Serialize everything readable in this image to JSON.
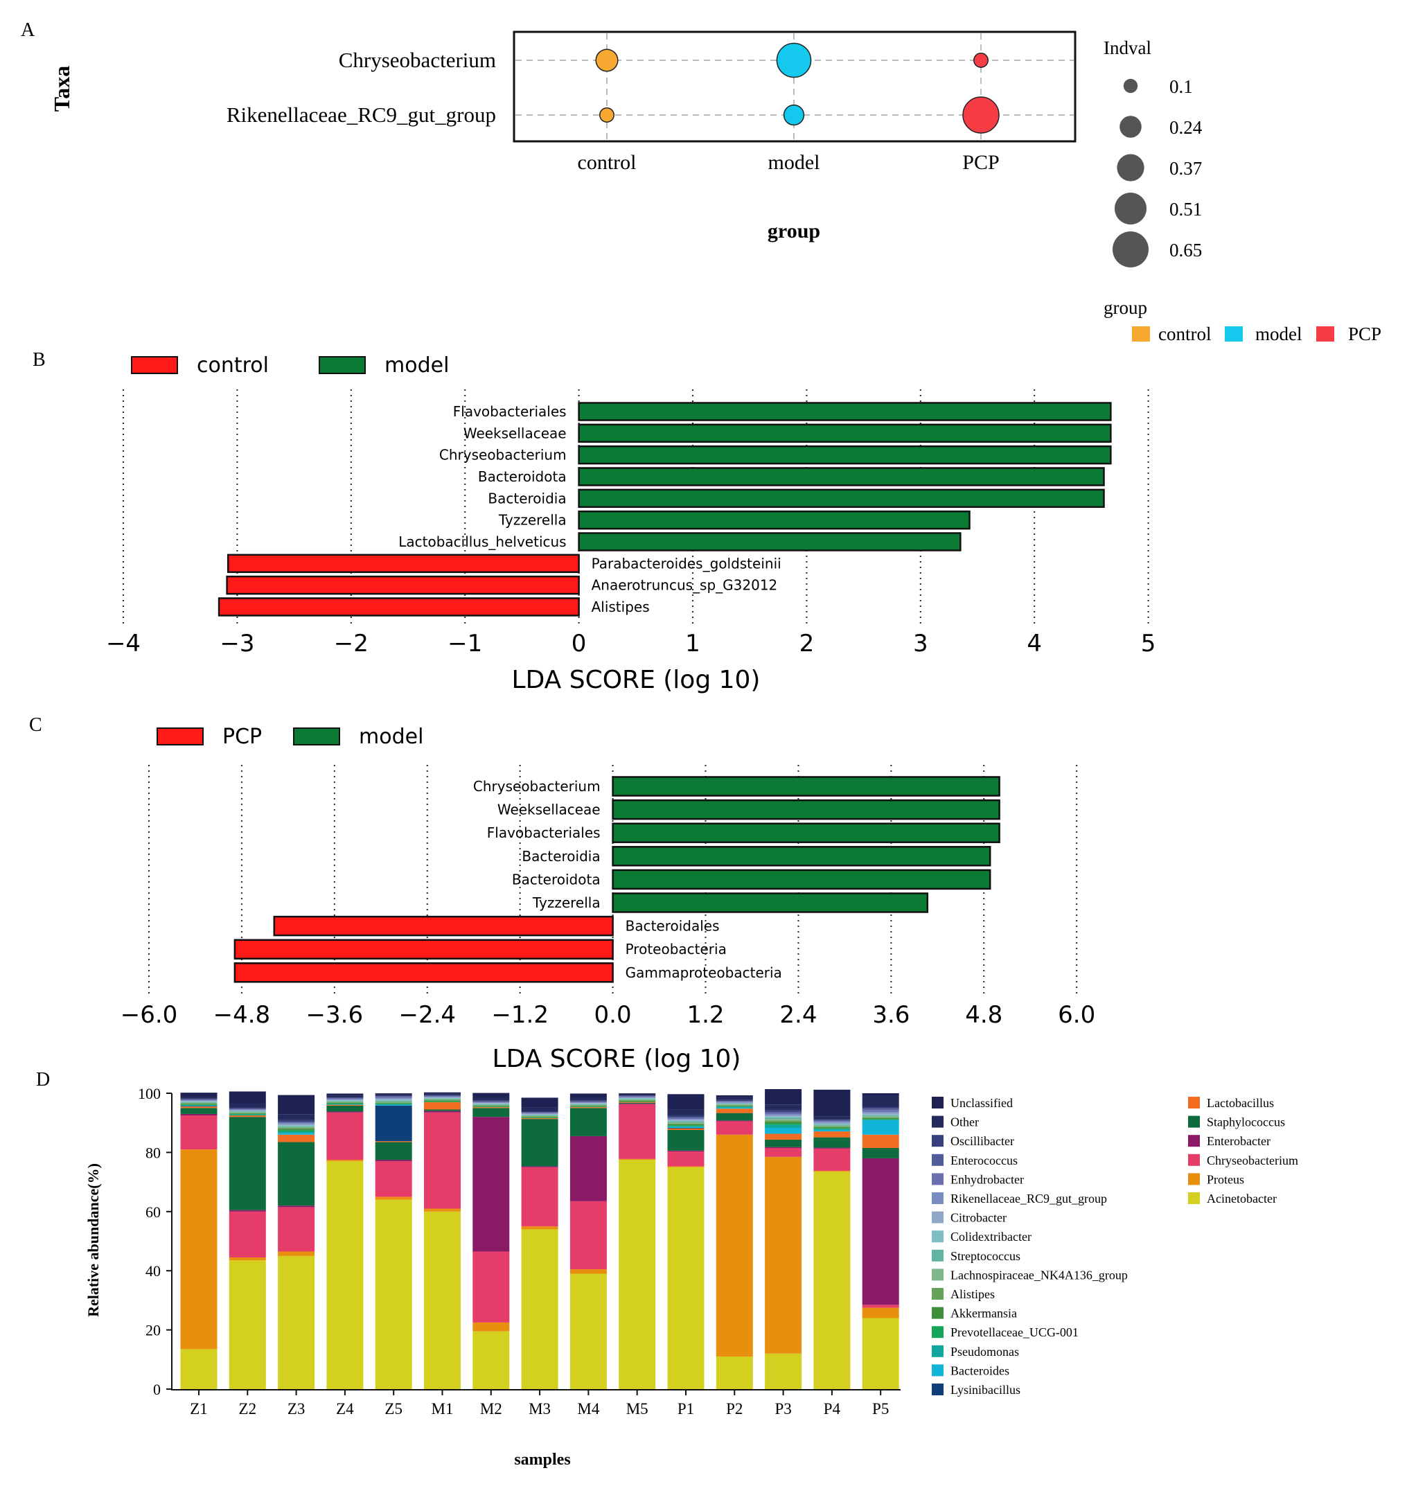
{
  "panels": {
    "A": {
      "letter": "A",
      "chart_data": {
        "type": "scatter",
        "ylabel": "Taxa",
        "xlabel": "group",
        "categories": [
          "control",
          "model",
          "PCP"
        ],
        "taxa": [
          "Chryseobacterium",
          "Rikenellaceae_RC9_gut_group"
        ],
        "size_legend_title": "Indval",
        "size_legend": [
          "0.1",
          "0.24",
          "0.37",
          "0.51",
          "0.65"
        ],
        "size_legend_values": [
          0.1,
          0.24,
          0.37,
          0.51,
          0.65
        ],
        "color_legend_title": "group",
        "group_colors": {
          "control": "#F7A830",
          "model": "#14C8EE",
          "PCP": "#F63C44"
        },
        "points": [
          {
            "taxon": "Chryseobacterium",
            "group": "control",
            "indval": 0.24
          },
          {
            "taxon": "Chryseobacterium",
            "group": "model",
            "indval": 0.58
          },
          {
            "taxon": "Chryseobacterium",
            "group": "PCP",
            "indval": 0.1
          },
          {
            "taxon": "Rikenellaceae_RC9_gut_group",
            "group": "control",
            "indval": 0.1
          },
          {
            "taxon": "Rikenellaceae_RC9_gut_group",
            "group": "model",
            "indval": 0.2
          },
          {
            "taxon": "Rikenellaceae_RC9_gut_group",
            "group": "PCP",
            "indval": 0.65
          }
        ]
      }
    },
    "B": {
      "letter": "B",
      "chart_data": {
        "type": "bar",
        "orientation": "horizontal",
        "xlabel": "LDA SCORE (log 10)",
        "xlim": [
          -4,
          5
        ],
        "ticks": [
          -4,
          -3,
          -2,
          -1,
          0,
          1,
          2,
          3,
          4,
          5
        ],
        "tick_labels": [
          "−4",
          "−3",
          "−2",
          "−1",
          "0",
          "1",
          "2",
          "3",
          "4",
          "5"
        ],
        "legend": [
          {
            "name": "control",
            "color": "#FF1A1A"
          },
          {
            "name": "model",
            "color": "#0A7A34"
          }
        ],
        "bars": [
          {
            "label": "Flavobacteriales",
            "value": 4.67,
            "group": "model"
          },
          {
            "label": "Weeksellaceae",
            "value": 4.67,
            "group": "model"
          },
          {
            "label": "Chryseobacterium",
            "value": 4.67,
            "group": "model"
          },
          {
            "label": "Bacteroidota",
            "value": 4.61,
            "group": "model"
          },
          {
            "label": "Bacteroidia",
            "value": 4.61,
            "group": "model"
          },
          {
            "label": "Tyzzerella",
            "value": 3.43,
            "group": "model"
          },
          {
            "label": "Lactobacillus_helveticus",
            "value": 3.35,
            "group": "model"
          },
          {
            "label": "Parabacteroides_goldsteinii",
            "value": -3.08,
            "group": "control"
          },
          {
            "label": "Anaerotruncus_sp_G32012",
            "value": -3.09,
            "group": "control"
          },
          {
            "label": "Alistipes",
            "value": -3.16,
            "group": "control"
          }
        ]
      }
    },
    "C": {
      "letter": "C",
      "chart_data": {
        "type": "bar",
        "orientation": "horizontal",
        "xlabel": "LDA SCORE (log 10)",
        "xlim": [
          -6.0,
          6.0
        ],
        "ticks": [
          -6.0,
          -4.8,
          -3.6,
          -2.4,
          -1.2,
          0.0,
          1.2,
          2.4,
          3.6,
          4.8,
          6.0
        ],
        "tick_labels": [
          "−6.0",
          "−4.8",
          "−3.6",
          "−2.4",
          "−1.2",
          "0.0",
          "1.2",
          "2.4",
          "3.6",
          "4.8",
          "6.0"
        ],
        "legend": [
          {
            "name": "PCP",
            "color": "#FF1A1A"
          },
          {
            "name": "model",
            "color": "#0A7A34"
          }
        ],
        "bars": [
          {
            "label": "Chryseobacterium",
            "value": 5.0,
            "group": "model"
          },
          {
            "label": "Weeksellaceae",
            "value": 5.0,
            "group": "model"
          },
          {
            "label": "Flavobacteriales",
            "value": 5.0,
            "group": "model"
          },
          {
            "label": "Bacteroidia",
            "value": 4.88,
            "group": "model"
          },
          {
            "label": "Bacteroidota",
            "value": 4.88,
            "group": "model"
          },
          {
            "label": "Tyzzerella",
            "value": 4.07,
            "group": "model"
          },
          {
            "label": "Bacteroidales",
            "value": -4.38,
            "group": "PCP"
          },
          {
            "label": "Proteobacteria",
            "value": -4.89,
            "group": "PCP"
          },
          {
            "label": "Gammaproteobacteria",
            "value": -4.89,
            "group": "PCP"
          }
        ]
      }
    },
    "D": {
      "letter": "D",
      "chart_data": {
        "type": "bar",
        "stacked": true,
        "ylabel": "Relative abundance(%)",
        "xlabel": "samples",
        "ylim": [
          0,
          100
        ],
        "yticks": [
          "0",
          "20",
          "40",
          "60",
          "80",
          "100"
        ],
        "categories": [
          "Z1",
          "Z2",
          "Z3",
          "Z4",
          "Z5",
          "M1",
          "M2",
          "M3",
          "M4",
          "M5",
          "P1",
          "P2",
          "P3",
          "P4",
          "P5"
        ],
        "series": [
          {
            "name": "Acinetobacter",
            "color": "#D4D020",
            "values": [
              13.5,
              43.5,
              45,
              77,
              64,
              60,
              19.5,
              54,
              39,
              77.5,
              75,
              11,
              12,
              73.5,
              24
            ]
          },
          {
            "name": "Proteus",
            "color": "#E8900E",
            "values": [
              67.5,
              1,
              1.5,
              0.5,
              1,
              1,
              3,
              1,
              1.5,
              0.3,
              0.3,
              75,
              66.5,
              0.3,
              3.5
            ]
          },
          {
            "name": "Chryseobacterium",
            "color": "#E63C6A",
            "values": [
              11.5,
              15.5,
              15,
              16,
              12,
              32.5,
              24,
              20,
              23,
              18.5,
              5,
              4.5,
              3,
              7.5,
              1
            ]
          },
          {
            "name": "Enterobacter",
            "color": "#8B1A66",
            "values": [
              0.5,
              0.5,
              0.5,
              0.3,
              0.5,
              0.5,
              45.5,
              0.3,
              22,
              0.2,
              0.3,
              0.3,
              0.3,
              0.3,
              49.5
            ]
          },
          {
            "name": "Staphylococcus",
            "color": "#0E6B3E",
            "values": [
              2,
              31.5,
              21.5,
              2,
              6,
              0.5,
              3,
              16,
              9.5,
              0.3,
              7,
              2.5,
              2.5,
              3.5,
              3.5
            ]
          },
          {
            "name": "Lactobacillus",
            "color": "#F26D21",
            "values": [
              0.5,
              0.5,
              2.5,
              0.3,
              0.3,
              2.5,
              0.3,
              0.3,
              0.3,
              0.3,
              0.5,
              1.5,
              2,
              2,
              4.5
            ]
          },
          {
            "name": "Lysinibacillus",
            "color": "#0E3F7A",
            "values": [
              0.2,
              0,
              0,
              0,
              12,
              0,
              0,
              0,
              0,
              0,
              0.2,
              0,
              0,
              0,
              0
            ]
          },
          {
            "name": "Bacteroides",
            "color": "#12B4D8",
            "values": [
              0,
              0,
              0.5,
              0,
              0.2,
              0,
              0,
              0,
              0,
              0,
              0.3,
              0.3,
              2,
              0.5,
              5
            ]
          },
          {
            "name": "Pseudomonas",
            "color": "#0FA7A0",
            "values": [
              0.3,
              0.3,
              0.5,
              0.3,
              0.3,
              0,
              0,
              0,
              0,
              0,
              0.3,
              0.3,
              1,
              0.3,
              0
            ]
          },
          {
            "name": "Prevotellaceae_UCG-001",
            "color": "#14A558",
            "values": [
              0.2,
              0.2,
              0.5,
              0.2,
              0.2,
              0.3,
              0.2,
              0.2,
              0.2,
              0.2,
              0.3,
              0.2,
              0.5,
              0.3,
              0.3
            ]
          },
          {
            "name": "Akkermansia",
            "color": "#3F8F3A",
            "values": [
              0.2,
              0.2,
              0.5,
              0.2,
              0.2,
              0.3,
              0.2,
              0.2,
              0.2,
              0.2,
              0.3,
              0.2,
              0.5,
              0.3,
              0.3
            ]
          },
          {
            "name": "Alistipes",
            "color": "#66A25A",
            "values": [
              0.2,
              0.2,
              0.3,
              0.2,
              0.2,
              0.2,
              0.2,
              0.2,
              0.2,
              0.2,
              0.3,
              0.2,
              0.5,
              0.3,
              0.3
            ]
          },
          {
            "name": "Lachnospiraceae_NK4A136_group",
            "color": "#7CB68A",
            "values": [
              0.2,
              0.2,
              0.3,
              0.2,
              0.3,
              0.2,
              0.2,
              0.2,
              0.2,
              0.2,
              0.3,
              0.2,
              0.5,
              0.3,
              0.3
            ]
          },
          {
            "name": "Streptococcus",
            "color": "#62B3A3",
            "values": [
              0.2,
              0.2,
              0.3,
              0.2,
              0.3,
              0.2,
              0.2,
              0.2,
              0.2,
              0.2,
              0.3,
              0.2,
              0.4,
              0.3,
              0.3
            ]
          },
          {
            "name": "Colidextribacter",
            "color": "#7EBEC2",
            "values": [
              0.2,
              0.2,
              0.3,
              0.2,
              0.3,
              0.2,
              0.2,
              0.2,
              0.2,
              0.2,
              0.3,
              0.2,
              0.4,
              0.3,
              0.3
            ]
          },
          {
            "name": "Citrobacter",
            "color": "#8FA8C8",
            "values": [
              0.2,
              0.2,
              0.3,
              0.2,
              0.3,
              0.2,
              0.2,
              0.2,
              0.2,
              0.2,
              0.3,
              0.2,
              0.4,
              0.3,
              0.5
            ]
          },
          {
            "name": "Rikenellaceae_RC9_gut_group",
            "color": "#7A8DC0",
            "values": [
              0.2,
              0.2,
              0.3,
              0.2,
              0.3,
              0.2,
              0.2,
              0.2,
              0.2,
              0.2,
              0.3,
              0.2,
              0.4,
              0.3,
              0.5
            ]
          },
          {
            "name": "Enhydrobacter",
            "color": "#6A6FB0",
            "values": [
              0.2,
              0.2,
              0.3,
              0.2,
              0.3,
              0.2,
              0.2,
              0.2,
              0.2,
              0.2,
              0.3,
              0.2,
              0.4,
              0.3,
              0.5
            ]
          },
          {
            "name": "Enterococcus",
            "color": "#505B9A",
            "values": [
              0.2,
              0.2,
              0.3,
              0.2,
              0.3,
              0.2,
              0.2,
              0.2,
              0.2,
              0.2,
              0.3,
              0.2,
              0.4,
              0.3,
              0.5
            ]
          },
          {
            "name": "Oscillibacter",
            "color": "#36407C",
            "values": [
              0.2,
              0.3,
              0.5,
              0.2,
              0.3,
              0.2,
              0.3,
              0.2,
              0.3,
              0.2,
              0.5,
              0.3,
              0.5,
              0.3,
              0.5
            ]
          },
          {
            "name": "Other",
            "color": "#252A5C",
            "values": [
              0.5,
              1.5,
              2,
              0.5,
              0.5,
              0.5,
              1,
              1.5,
              1,
              0.5,
              2,
              1,
              2,
              1,
              4
            ]
          },
          {
            "name": "Unclassified",
            "color": "#1E2252",
            "values": [
              1.5,
              4,
              6.5,
              0.8,
              0.2,
              0.4,
              1.5,
              3.2,
              1.3,
              0.2,
              5.3,
              0.6,
              5.2,
              9,
              0.7
            ]
          }
        ],
        "legend_col1": [
          "Unclassified",
          "Other",
          "Oscillibacter",
          "Enterococcus",
          "Enhydrobacter",
          "Rikenellaceae_RC9_gut_group",
          "Citrobacter",
          "Colidextribacter",
          "Streptococcus",
          "Lachnospiraceae_NK4A136_group",
          "Alistipes",
          "Akkermansia",
          "Prevotellaceae_UCG-001",
          "Pseudomonas",
          "Bacteroides",
          "Lysinibacillus"
        ],
        "legend_col2": [
          "Lactobacillus",
          "Staphylococcus",
          "Enterobacter",
          "Chryseobacterium",
          "Proteus",
          "Acinetobacter"
        ]
      }
    }
  }
}
